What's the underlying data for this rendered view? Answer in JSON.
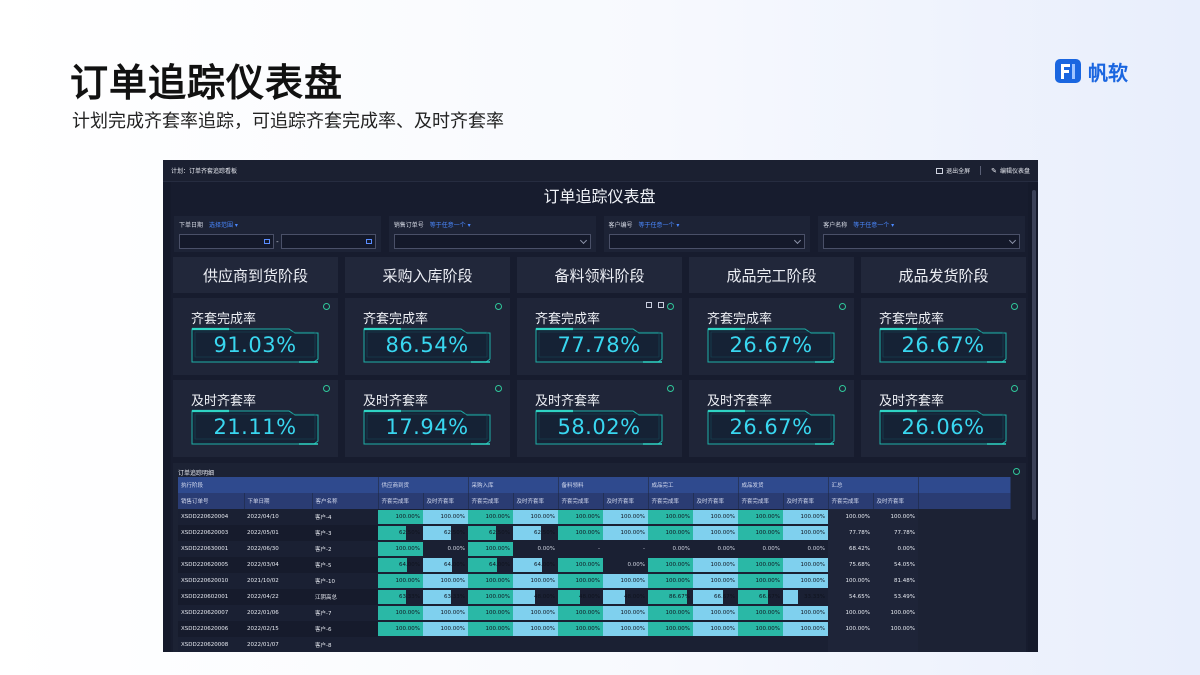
{
  "slide": {
    "title": "订单追踪仪表盘",
    "subtitle": "计划完成齐套率追踪，可追踪齐套完成率、及时齐套率",
    "brand": "帆软",
    "brand_color": "#1a66e0"
  },
  "topbar": {
    "breadcrumb": "计划：订单齐套追踪看板",
    "exit_fullscreen": "退出全屏",
    "edit_dashboard": "编辑仪表盘"
  },
  "dashboard_title": "订单追踪仪表盘",
  "filters": {
    "order_date": {
      "label": "下单日期",
      "hint": "选择范围 ▾",
      "separator": "-"
    },
    "sales_order": {
      "label": "销售订单号",
      "hint": "等于任意一个 ▾"
    },
    "customer_code": {
      "label": "客户编号",
      "hint": "等于任意一个 ▾"
    },
    "customer_name": {
      "label": "客户名称",
      "hint": "等于任意一个 ▾"
    }
  },
  "stages": [
    "供应商到货阶段",
    "采购入库阶段",
    "备料领料阶段",
    "成品完工阶段",
    "成品发货阶段"
  ],
  "kpi_labels": {
    "completion": "齐套完成率",
    "ontime": "及时齐套率"
  },
  "kpi_completion": [
    "91.03%",
    "86.54%",
    "77.78%",
    "26.67%",
    "26.67%"
  ],
  "kpi_ontime": [
    "21.11%",
    "17.94%",
    "58.02%",
    "26.67%",
    "26.06%"
  ],
  "kpi_value_color": "#39d7f0",
  "table": {
    "title": "订单追踪明细",
    "group_headers": [
      "执行阶段",
      "供应商到货",
      "采购入库",
      "备料领料",
      "成品完工",
      "成品发货",
      "汇总"
    ],
    "sub_headers": [
      "销售订单号",
      "下单日期",
      "客户名称",
      "齐套完成率",
      "及时齐套率",
      "齐套完成率",
      "及时齐套率",
      "齐套完成率",
      "及时齐套率",
      "齐套完成率",
      "及时齐套率",
      "齐套完成率",
      "及时齐套率",
      "齐套完成率",
      "及时齐套率"
    ],
    "rows": [
      [
        "XSDD220620004",
        "2022/04/10",
        "客户-4",
        "100.00%",
        "100.00%",
        "100.00%",
        "100.00%",
        "100.00%",
        "100.00%",
        "100.00%",
        "100.00%",
        "100.00%",
        "100.00%",
        "100.00%",
        "100.00%"
      ],
      [
        "XSDD220620003",
        "2022/05/01",
        "客户-3",
        "62.50%",
        "62.50%",
        "62.50%",
        "62.50%",
        "100.00%",
        "100.00%",
        "100.00%",
        "100.00%",
        "100.00%",
        "100.00%",
        "77.78%",
        "77.78%"
      ],
      [
        "XSDD220630001",
        "2022/06/30",
        "客户-2",
        "100.00%",
        "0.00%",
        "100.00%",
        "0.00%",
        "-",
        "-",
        "0.00%",
        "0.00%",
        "0.00%",
        "0.00%",
        "68.42%",
        "0.00%"
      ],
      [
        "XSDD220620005",
        "2022/03/04",
        "客户-5",
        "64.00%",
        "64.00%",
        "64.00%",
        "64.00%",
        "100.00%",
        "0.00%",
        "100.00%",
        "100.00%",
        "100.00%",
        "100.00%",
        "75.68%",
        "54.05%"
      ],
      [
        "XSDD220620010",
        "2021/10/02",
        "客户-10",
        "100.00%",
        "100.00%",
        "100.00%",
        "100.00%",
        "100.00%",
        "100.00%",
        "100.00%",
        "100.00%",
        "100.00%",
        "100.00%",
        "100.00%",
        "81.48%"
      ],
      [
        "XSDD220602001",
        "2022/04/22",
        "江阴高总",
        "63.33%",
        "63.33%",
        "100.00%",
        "48.00%",
        "48.00%",
        "48.00%",
        "86.67%",
        "66.67%",
        "66.67%",
        "33.33%",
        "54.65%",
        "53.49%"
      ],
      [
        "XSDD220620007",
        "2022/01/06",
        "客户-7",
        "100.00%",
        "100.00%",
        "100.00%",
        "100.00%",
        "100.00%",
        "100.00%",
        "100.00%",
        "100.00%",
        "100.00%",
        "100.00%",
        "100.00%",
        "100.00%"
      ],
      [
        "XSDD220620006",
        "2022/02/15",
        "客户-6",
        "100.00%",
        "100.00%",
        "100.00%",
        "100.00%",
        "100.00%",
        "100.00%",
        "100.00%",
        "100.00%",
        "100.00%",
        "100.00%",
        "100.00%",
        "100.00%"
      ],
      [
        "XSDD220620008",
        "2022/01/07",
        "客户-8",
        "",
        "",
        "",
        "",
        "",
        "",
        "",
        "",
        "",
        "",
        "",
        ""
      ]
    ]
  }
}
